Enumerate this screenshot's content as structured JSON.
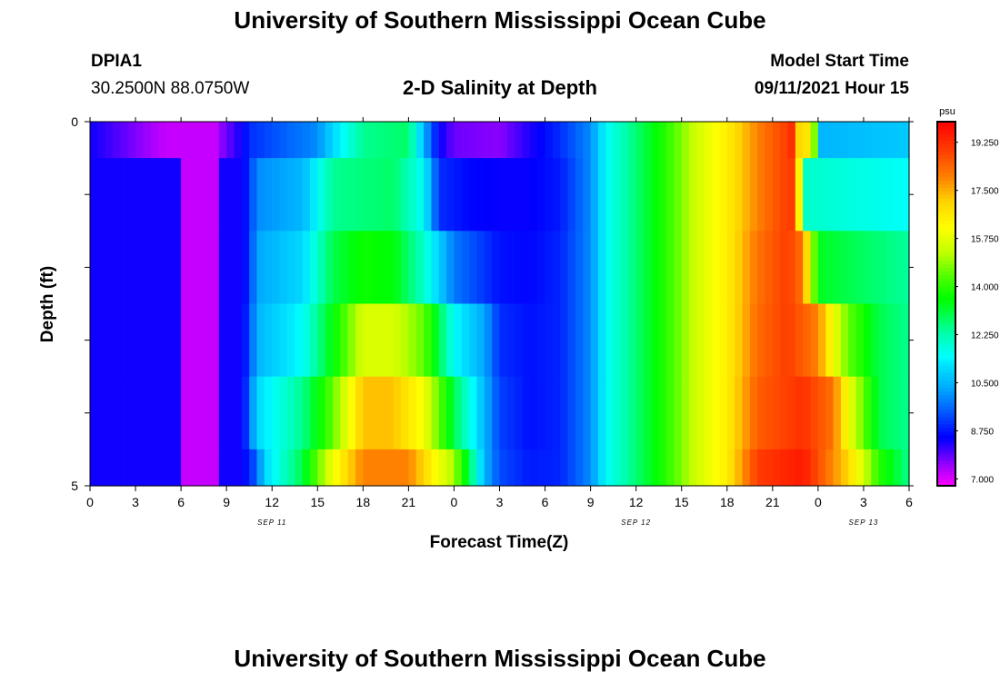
{
  "header": {
    "title": "University of Southern Mississippi Ocean Cube",
    "station_id": "DPIA1",
    "station_coords": "30.2500N  88.0750W",
    "model_start_label": "Model Start Time",
    "model_start_value": "09/11/2021 Hour 15",
    "footer_title": "University of Southern Mississippi Ocean Cube"
  },
  "chart_data": {
    "type": "heatmap",
    "title": "2-D Salinity at Depth",
    "xlabel": "Forecast Time(Z)",
    "ylabel": "Depth (ft)",
    "units": "psu",
    "hours_total": 54,
    "x_ticks": [
      "0",
      "3",
      "6",
      "9",
      "12",
      "15",
      "18",
      "21",
      "0",
      "3",
      "6",
      "9",
      "12",
      "15",
      "18",
      "21",
      "0",
      "3",
      "6"
    ],
    "date_labels": [
      {
        "text": "SEP 11",
        "hour": 12
      },
      {
        "text": "SEP 12",
        "hour": 36
      },
      {
        "text": "SEP 13",
        "hour": 51
      }
    ],
    "y_range": [
      0,
      5
    ],
    "y_tick_labels": [
      "0",
      "5"
    ],
    "depth_levels": 5,
    "depth_rows": [
      {
        "depth_range": [
          0,
          0.5
        ],
        "anchors": [
          [
            0,
            8.4
          ],
          [
            5,
            7.2
          ],
          [
            8,
            7.2
          ],
          [
            10,
            8.4
          ],
          [
            10.5,
            9.0
          ],
          [
            15,
            10.0
          ],
          [
            16,
            11.0
          ],
          [
            18,
            12.5
          ],
          [
            21,
            12.8
          ],
          [
            22,
            10.5
          ],
          [
            23,
            8.5
          ],
          [
            24,
            7.8
          ],
          [
            27,
            7.6
          ],
          [
            29,
            8.3
          ],
          [
            31,
            9.0
          ],
          [
            33,
            10.0
          ],
          [
            34,
            11.5
          ],
          [
            36,
            12.7
          ],
          [
            38,
            14.0
          ],
          [
            40,
            15.5
          ],
          [
            42,
            16.5
          ],
          [
            44,
            18.0
          ],
          [
            46,
            19.0
          ],
          [
            46.5,
            19.5
          ],
          [
            47,
            14.5
          ],
          [
            47.5,
            19.0
          ],
          [
            48,
            10.5
          ],
          [
            54,
            10.8
          ]
        ]
      },
      {
        "depth_range": [
          0.5,
          1.5
        ],
        "anchors": [
          [
            0,
            8.4
          ],
          [
            10,
            8.4
          ],
          [
            10.5,
            9.0
          ],
          [
            11,
            10.0
          ],
          [
            14,
            10.5
          ],
          [
            16,
            12.5
          ],
          [
            20,
            12.8
          ],
          [
            22,
            11.5
          ],
          [
            23,
            9.0
          ],
          [
            25,
            8.6
          ],
          [
            27,
            8.5
          ],
          [
            29,
            8.5
          ],
          [
            31,
            8.8
          ],
          [
            33,
            10.0
          ],
          [
            34,
            11.5
          ],
          [
            36,
            12.7
          ],
          [
            38,
            14.0
          ],
          [
            40,
            15.5
          ],
          [
            42,
            16.5
          ],
          [
            44,
            18.0
          ],
          [
            46,
            19.0
          ],
          [
            46.6,
            19.0
          ],
          [
            47,
            12.0
          ],
          [
            54,
            11.5
          ]
        ]
      },
      {
        "depth_range": [
          1.5,
          2.5
        ],
        "anchors": [
          [
            0,
            8.4
          ],
          [
            10,
            8.4
          ],
          [
            10.5,
            9.0
          ],
          [
            11,
            10.3
          ],
          [
            14,
            11.0
          ],
          [
            16,
            13.0
          ],
          [
            18,
            13.7
          ],
          [
            20,
            13.5
          ],
          [
            22,
            12.0
          ],
          [
            24,
            9.8
          ],
          [
            27,
            8.7
          ],
          [
            29,
            8.6
          ],
          [
            31,
            8.9
          ],
          [
            33,
            10.0
          ],
          [
            34,
            11.5
          ],
          [
            36,
            12.7
          ],
          [
            38,
            14.0
          ],
          [
            40,
            15.5
          ],
          [
            42,
            16.5
          ],
          [
            44,
            18.2
          ],
          [
            46,
            19.0
          ],
          [
            47,
            18.2
          ],
          [
            48,
            13.3
          ],
          [
            54,
            12.4
          ]
        ]
      },
      {
        "depth_range": [
          2.5,
          3.5
        ],
        "anchors": [
          [
            0,
            8.4
          ],
          [
            10,
            8.4
          ],
          [
            10.5,
            9.2
          ],
          [
            11,
            10.5
          ],
          [
            14,
            11.5
          ],
          [
            16,
            13.5
          ],
          [
            18,
            15.6
          ],
          [
            20,
            15.6
          ],
          [
            22,
            14.5
          ],
          [
            24,
            11.5
          ],
          [
            26,
            10.3
          ],
          [
            27,
            9.0
          ],
          [
            29,
            8.7
          ],
          [
            31,
            8.9
          ],
          [
            33,
            10.0
          ],
          [
            34,
            11.5
          ],
          [
            36,
            12.7
          ],
          [
            38,
            14.0
          ],
          [
            40,
            15.5
          ],
          [
            42,
            16.5
          ],
          [
            44,
            18.3
          ],
          [
            46,
            19.0
          ],
          [
            48,
            18.0
          ],
          [
            49,
            16.0
          ],
          [
            50,
            14.5
          ],
          [
            52,
            13.0
          ],
          [
            54,
            12.5
          ]
        ]
      },
      {
        "depth_range": [
          3.5,
          4.5
        ],
        "anchors": [
          [
            0,
            8.4
          ],
          [
            10,
            8.4
          ],
          [
            10.5,
            9.5
          ],
          [
            11,
            11.0
          ],
          [
            14,
            12.5
          ],
          [
            16,
            14.5
          ],
          [
            18,
            17.3
          ],
          [
            20,
            17.3
          ],
          [
            22,
            16.0
          ],
          [
            24,
            13.0
          ],
          [
            26,
            10.5
          ],
          [
            27,
            9.2
          ],
          [
            29,
            8.7
          ],
          [
            31,
            8.9
          ],
          [
            33,
            10.0
          ],
          [
            34,
            11.5
          ],
          [
            36,
            12.7
          ],
          [
            38,
            14.0
          ],
          [
            40,
            15.5
          ],
          [
            42,
            16.5
          ],
          [
            44,
            18.5
          ],
          [
            47,
            19.2
          ],
          [
            49,
            18.2
          ],
          [
            50,
            16.0
          ],
          [
            52,
            13.0
          ],
          [
            54,
            12.5
          ]
        ]
      },
      {
        "depth_range": [
          4.5,
          5.0
        ],
        "anchors": [
          [
            0,
            8.4
          ],
          [
            10,
            8.4
          ],
          [
            11,
            9.5
          ],
          [
            11.5,
            11.0
          ],
          [
            14,
            13.0
          ],
          [
            16,
            16.0
          ],
          [
            18,
            18.0
          ],
          [
            21,
            18.0
          ],
          [
            24,
            15.0
          ],
          [
            25,
            13.0
          ],
          [
            26,
            10.5
          ],
          [
            27,
            9.3
          ],
          [
            29,
            8.8
          ],
          [
            31,
            8.9
          ],
          [
            33,
            10.0
          ],
          [
            34,
            11.5
          ],
          [
            36,
            12.7
          ],
          [
            38,
            14.0
          ],
          [
            40,
            15.5
          ],
          [
            42,
            16.5
          ],
          [
            44,
            19.0
          ],
          [
            47,
            19.6
          ],
          [
            50,
            17.0
          ],
          [
            52,
            14.0
          ],
          [
            54,
            12.5
          ]
        ]
      }
    ],
    "magenta_patch": {
      "hours": [
        5.9,
        8.7
      ],
      "value": 7.2
    },
    "colorbar": {
      "min": 6.75,
      "max": 20.0,
      "labels": [
        "19.250",
        "17.500",
        "15.750",
        "14.000",
        "12.250",
        "10.500",
        "8.750",
        "7.000"
      ],
      "label_values": [
        19.25,
        17.5,
        15.75,
        14.0,
        12.25,
        10.5,
        8.75,
        7.0
      ]
    }
  }
}
